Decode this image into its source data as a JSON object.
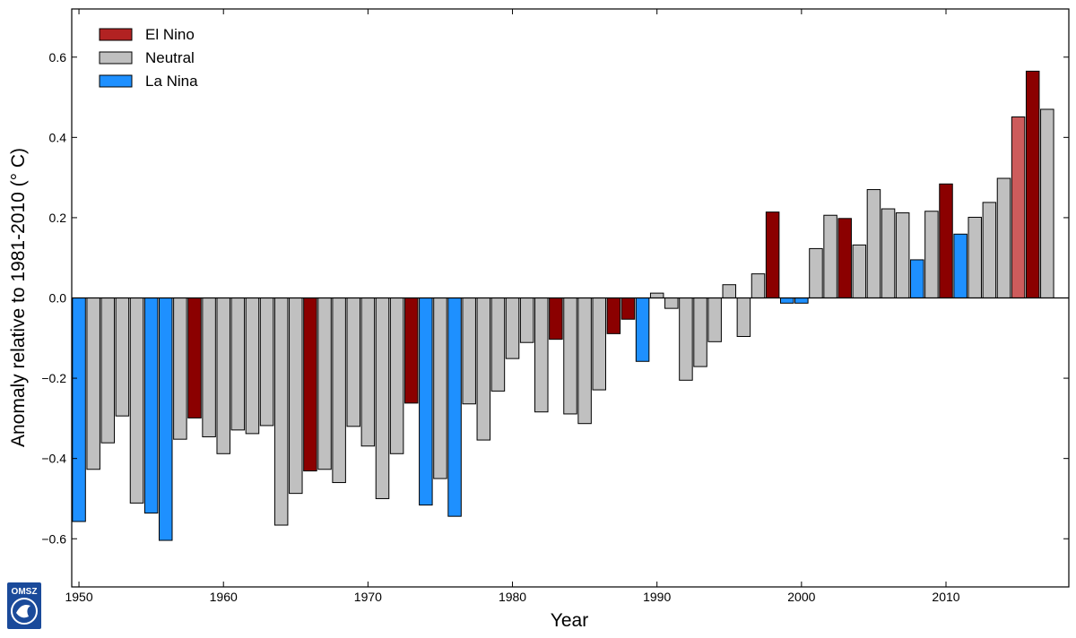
{
  "chart_data": {
    "type": "bar",
    "xlabel": "Year",
    "ylabel": "Anomaly relative to 1981-2010 (° C)",
    "xlim": [
      1949.5,
      2018.5
    ],
    "ylim": [
      -0.72,
      0.72
    ],
    "xticks": [
      1950,
      1960,
      1970,
      1980,
      1990,
      2000,
      2010
    ],
    "yticks": [
      -0.6,
      -0.4,
      -0.2,
      0.0,
      0.2,
      0.4,
      0.6
    ],
    "ytick_labels": [
      "−0.6",
      "−0.4",
      "−0.2",
      "0.0",
      "0.2",
      "0.4",
      "0.6"
    ],
    "grid": false,
    "legend_position": "top-left",
    "legend": [
      {
        "label": "El Nino",
        "color": "#b22222"
      },
      {
        "label": "Neutral",
        "color": "#c0c0c0"
      },
      {
        "label": "La Nina",
        "color": "#1e90ff"
      }
    ],
    "phase_colors": {
      "E": "#8b0000",
      "N": "#c0c0c0",
      "L": "#1e90ff",
      "E2": "#cd5c5c"
    },
    "years": [
      1950,
      1951,
      1952,
      1953,
      1954,
      1955,
      1956,
      1957,
      1958,
      1959,
      1960,
      1961,
      1962,
      1963,
      1964,
      1965,
      1966,
      1967,
      1968,
      1969,
      1970,
      1971,
      1972,
      1973,
      1974,
      1975,
      1976,
      1977,
      1978,
      1979,
      1980,
      1981,
      1982,
      1983,
      1984,
      1985,
      1986,
      1987,
      1988,
      1989,
      1990,
      1991,
      1992,
      1993,
      1994,
      1995,
      1996,
      1997,
      1998,
      1999,
      2000,
      2001,
      2002,
      2003,
      2004,
      2005,
      2006,
      2007,
      2008,
      2009,
      2010,
      2011,
      2012,
      2013,
      2014,
      2015,
      2016,
      2017
    ],
    "values": [
      -0.557,
      -0.427,
      -0.361,
      -0.294,
      -0.511,
      -0.536,
      -0.604,
      -0.352,
      -0.299,
      -0.346,
      -0.388,
      -0.329,
      -0.338,
      -0.318,
      -0.566,
      -0.487,
      -0.431,
      -0.427,
      -0.46,
      -0.32,
      -0.369,
      -0.5,
      -0.388,
      -0.262,
      -0.516,
      -0.45,
      -0.544,
      -0.264,
      -0.354,
      -0.232,
      -0.151,
      -0.111,
      -0.284,
      -0.103,
      -0.289,
      -0.313,
      -0.229,
      -0.089,
      -0.053,
      -0.158,
      0.012,
      -0.026,
      -0.205,
      -0.171,
      -0.109,
      0.033,
      -0.096,
      0.06,
      0.214,
      -0.013,
      -0.013,
      0.123,
      0.206,
      0.198,
      0.132,
      0.27,
      0.222,
      0.212,
      0.095,
      0.216,
      0.284,
      0.159,
      0.201,
      0.238,
      0.298,
      0.451,
      0.565,
      0.47
    ],
    "phases": [
      "L",
      "N",
      "N",
      "N",
      "N",
      "L",
      "L",
      "N",
      "E",
      "N",
      "N",
      "N",
      "N",
      "N",
      "N",
      "N",
      "E",
      "N",
      "N",
      "N",
      "N",
      "N",
      "N",
      "E",
      "L",
      "N",
      "L",
      "N",
      "N",
      "N",
      "N",
      "N",
      "N",
      "E",
      "N",
      "N",
      "N",
      "E",
      "E",
      "L",
      "N",
      "N",
      "N",
      "N",
      "N",
      "N",
      "N",
      "N",
      "E",
      "L",
      "L",
      "N",
      "N",
      "E",
      "N",
      "N",
      "N",
      "N",
      "L",
      "N",
      "E",
      "L",
      "N",
      "N",
      "N",
      "E2",
      "E",
      "N"
    ]
  },
  "logo": {
    "text": "OMSZ"
  }
}
